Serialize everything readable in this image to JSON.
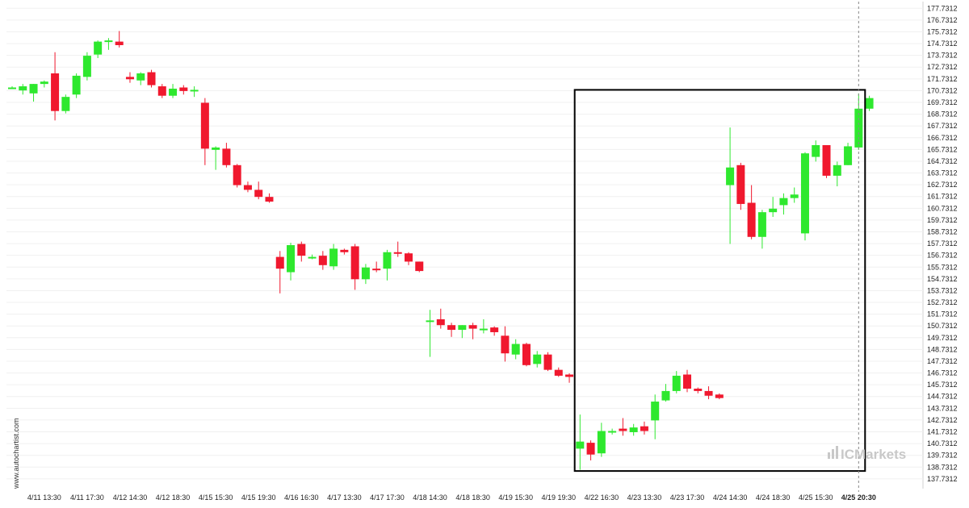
{
  "watermark": {
    "side": "www.autochartist.com",
    "logo": "ICMarkets"
  },
  "chart_data": {
    "type": "candlestick",
    "ylim": [
      136.9,
      178.3
    ],
    "y_ticks": [
      "177.7312",
      "176.7312",
      "175.7312",
      "174.7312",
      "173.7312",
      "172.7312",
      "171.7312",
      "170.7312",
      "169.7312",
      "168.7312",
      "167.7312",
      "166.7312",
      "165.7312",
      "164.7312",
      "163.7312",
      "162.7312",
      "161.7312",
      "160.7312",
      "159.7312",
      "158.7312",
      "157.7312",
      "156.7312",
      "155.7312",
      "154.7312",
      "153.7312",
      "152.7312",
      "151.7312",
      "150.7312",
      "149.7312",
      "148.7312",
      "147.7312",
      "146.7312",
      "145.7312",
      "144.7312",
      "143.7312",
      "142.7312",
      "141.7312",
      "140.7312",
      "139.7312",
      "138.7312",
      "137.7312"
    ],
    "x_tick_labels": [
      {
        "label": "4/11 13:30",
        "index": 3
      },
      {
        "label": "4/11 17:30",
        "index": 7
      },
      {
        "label": "4/12 14:30",
        "index": 11
      },
      {
        "label": "4/12 18:30",
        "index": 15
      },
      {
        "label": "4/15 15:30",
        "index": 19
      },
      {
        "label": "4/15 19:30",
        "index": 23
      },
      {
        "label": "4/16 16:30",
        "index": 27
      },
      {
        "label": "4/17 13:30",
        "index": 31
      },
      {
        "label": "4/17 17:30",
        "index": 35
      },
      {
        "label": "4/18 14:30",
        "index": 39
      },
      {
        "label": "4/18 18:30",
        "index": 43
      },
      {
        "label": "4/19 15:30",
        "index": 47
      },
      {
        "label": "4/19 19:30",
        "index": 51
      },
      {
        "label": "4/22 16:30",
        "index": 55
      },
      {
        "label": "4/23 13:30",
        "index": 59
      },
      {
        "label": "4/23 17:30",
        "index": 63
      },
      {
        "label": "4/24 14:30",
        "index": 67
      },
      {
        "label": "4/24 18:30",
        "index": 71
      },
      {
        "label": "4/25 15:30",
        "index": 75
      },
      {
        "label": "4/25 20:30",
        "index": 79,
        "bold": true
      }
    ],
    "current_index": 79,
    "pattern_box": {
      "start_index": 52.5,
      "end_index": 79.6,
      "high": 170.8,
      "low": 138.4
    },
    "colors": {
      "up": "#2ee82e",
      "down": "#f0182e",
      "box": "#000000",
      "grid": "#f0f0f0",
      "cursor": "#888888"
    },
    "candles": [
      {
        "o": 171.0,
        "h": 171.1,
        "l": 170.9,
        "c": 171.0
      },
      {
        "o": 170.75,
        "h": 171.3,
        "l": 170.4,
        "c": 171.1
      },
      {
        "o": 170.5,
        "h": 171.3,
        "l": 169.8,
        "c": 171.3
      },
      {
        "o": 171.3,
        "h": 171.6,
        "l": 171.0,
        "c": 171.5
      },
      {
        "o": 172.2,
        "h": 174.0,
        "l": 168.2,
        "c": 169.0
      },
      {
        "o": 169.0,
        "h": 170.4,
        "l": 168.8,
        "c": 170.2
      },
      {
        "o": 170.4,
        "h": 172.2,
        "l": 170.1,
        "c": 172.0
      },
      {
        "o": 171.9,
        "h": 174.0,
        "l": 171.6,
        "c": 173.7
      },
      {
        "o": 173.8,
        "h": 175.0,
        "l": 173.5,
        "c": 174.9
      },
      {
        "o": 174.9,
        "h": 175.2,
        "l": 174.2,
        "c": 175.0
      },
      {
        "o": 174.9,
        "h": 175.8,
        "l": 174.4,
        "c": 174.6
      },
      {
        "o": 171.9,
        "h": 172.3,
        "l": 171.4,
        "c": 171.7
      },
      {
        "o": 171.6,
        "h": 172.3,
        "l": 171.2,
        "c": 172.2
      },
      {
        "o": 172.3,
        "h": 172.5,
        "l": 171.0,
        "c": 171.2
      },
      {
        "o": 171.1,
        "h": 171.3,
        "l": 170.1,
        "c": 170.3
      },
      {
        "o": 170.3,
        "h": 171.3,
        "l": 170.1,
        "c": 170.9
      },
      {
        "o": 171.0,
        "h": 171.2,
        "l": 170.4,
        "c": 170.7
      },
      {
        "o": 170.8,
        "h": 171.1,
        "l": 170.2,
        "c": 170.8
      },
      {
        "o": 169.7,
        "h": 170.1,
        "l": 164.4,
        "c": 165.8
      },
      {
        "o": 165.7,
        "h": 166.0,
        "l": 164.0,
        "c": 165.9
      },
      {
        "o": 165.8,
        "h": 166.3,
        "l": 164.2,
        "c": 164.4
      },
      {
        "o": 164.4,
        "h": 164.5,
        "l": 162.5,
        "c": 162.7
      },
      {
        "o": 162.7,
        "h": 163.0,
        "l": 162.1,
        "c": 162.3
      },
      {
        "o": 162.3,
        "h": 163.0,
        "l": 161.5,
        "c": 161.7
      },
      {
        "o": 161.7,
        "h": 162.0,
        "l": 161.2,
        "c": 161.3
      },
      {
        "o": 156.6,
        "h": 157.1,
        "l": 153.5,
        "c": 155.6
      },
      {
        "o": 155.3,
        "h": 157.8,
        "l": 154.6,
        "c": 157.6
      },
      {
        "o": 157.7,
        "h": 157.9,
        "l": 156.2,
        "c": 156.7
      },
      {
        "o": 156.6,
        "h": 156.8,
        "l": 156.4,
        "c": 156.6
      },
      {
        "o": 156.7,
        "h": 157.1,
        "l": 155.5,
        "c": 155.9
      },
      {
        "o": 155.8,
        "h": 157.7,
        "l": 155.5,
        "c": 157.3
      },
      {
        "o": 157.2,
        "h": 157.3,
        "l": 156.8,
        "c": 157.0
      },
      {
        "o": 157.5,
        "h": 157.7,
        "l": 153.8,
        "c": 154.7
      },
      {
        "o": 154.7,
        "h": 156.0,
        "l": 154.3,
        "c": 155.7
      },
      {
        "o": 155.6,
        "h": 156.2,
        "l": 155.3,
        "c": 155.5
      },
      {
        "o": 155.6,
        "h": 157.2,
        "l": 154.6,
        "c": 157.0
      },
      {
        "o": 157.0,
        "h": 157.9,
        "l": 156.6,
        "c": 156.9
      },
      {
        "o": 156.9,
        "h": 157.0,
        "l": 155.9,
        "c": 156.2
      },
      {
        "o": 156.2,
        "h": 156.2,
        "l": 155.3,
        "c": 155.4
      },
      {
        "o": 151.2,
        "h": 152.1,
        "l": 148.1,
        "c": 151.2
      },
      {
        "o": 151.3,
        "h": 152.2,
        "l": 150.5,
        "c": 150.8
      },
      {
        "o": 150.8,
        "h": 151.0,
        "l": 149.8,
        "c": 150.4
      },
      {
        "o": 150.4,
        "h": 150.8,
        "l": 149.7,
        "c": 150.8
      },
      {
        "o": 150.8,
        "h": 151.0,
        "l": 149.6,
        "c": 150.5
      },
      {
        "o": 150.4,
        "h": 151.3,
        "l": 150.1,
        "c": 150.5
      },
      {
        "o": 150.6,
        "h": 150.7,
        "l": 149.9,
        "c": 150.2
      },
      {
        "o": 149.9,
        "h": 150.7,
        "l": 147.7,
        "c": 148.4
      },
      {
        "o": 148.3,
        "h": 149.6,
        "l": 147.9,
        "c": 149.2
      },
      {
        "o": 149.2,
        "h": 149.3,
        "l": 147.3,
        "c": 147.4
      },
      {
        "o": 147.5,
        "h": 148.6,
        "l": 147.2,
        "c": 148.3
      },
      {
        "o": 148.3,
        "h": 148.5,
        "l": 146.9,
        "c": 147.0
      },
      {
        "o": 147.0,
        "h": 147.2,
        "l": 146.4,
        "c": 146.5
      },
      {
        "o": 146.6,
        "h": 146.7,
        "l": 145.9,
        "c": 146.4
      },
      {
        "o": 140.3,
        "h": 143.2,
        "l": 138.5,
        "c": 140.9
      },
      {
        "o": 140.8,
        "h": 141.0,
        "l": 139.3,
        "c": 139.8
      },
      {
        "o": 139.9,
        "h": 142.5,
        "l": 139.6,
        "c": 141.8
      },
      {
        "o": 141.8,
        "h": 142.0,
        "l": 141.5,
        "c": 141.8
      },
      {
        "o": 142.0,
        "h": 142.9,
        "l": 141.4,
        "c": 141.8
      },
      {
        "o": 141.7,
        "h": 142.4,
        "l": 141.4,
        "c": 142.1
      },
      {
        "o": 142.2,
        "h": 142.6,
        "l": 141.5,
        "c": 141.8
      },
      {
        "o": 142.7,
        "h": 144.9,
        "l": 141.1,
        "c": 144.3
      },
      {
        "o": 144.4,
        "h": 145.8,
        "l": 144.3,
        "c": 145.2
      },
      {
        "o": 145.2,
        "h": 146.9,
        "l": 145.0,
        "c": 146.5
      },
      {
        "o": 146.6,
        "h": 147.0,
        "l": 145.1,
        "c": 145.4
      },
      {
        "o": 145.4,
        "h": 145.5,
        "l": 145.0,
        "c": 145.2
      },
      {
        "o": 145.2,
        "h": 145.6,
        "l": 144.5,
        "c": 144.8
      },
      {
        "o": 144.9,
        "h": 145.0,
        "l": 144.5,
        "c": 144.6
      },
      {
        "o": 162.7,
        "h": 167.6,
        "l": 157.7,
        "c": 164.2
      },
      {
        "o": 164.4,
        "h": 164.6,
        "l": 160.6,
        "c": 161.1
      },
      {
        "o": 161.2,
        "h": 162.7,
        "l": 158.1,
        "c": 158.3
      },
      {
        "o": 158.3,
        "h": 160.6,
        "l": 157.3,
        "c": 160.4
      },
      {
        "o": 160.4,
        "h": 161.7,
        "l": 160.0,
        "c": 160.7
      },
      {
        "o": 161.0,
        "h": 162.0,
        "l": 160.2,
        "c": 161.6
      },
      {
        "o": 161.6,
        "h": 162.5,
        "l": 161.2,
        "c": 161.9
      },
      {
        "o": 158.6,
        "h": 165.5,
        "l": 158.0,
        "c": 165.4
      },
      {
        "o": 165.1,
        "h": 166.5,
        "l": 164.7,
        "c": 166.1
      },
      {
        "o": 166.1,
        "h": 166.1,
        "l": 163.3,
        "c": 163.5
      },
      {
        "o": 163.5,
        "h": 164.7,
        "l": 162.6,
        "c": 164.4
      },
      {
        "o": 164.4,
        "h": 166.3,
        "l": 164.4,
        "c": 166.0
      },
      {
        "o": 165.9,
        "h": 170.5,
        "l": 165.7,
        "c": 169.2
      },
      {
        "o": 169.2,
        "h": 170.3,
        "l": 169.0,
        "c": 170.1
      }
    ]
  }
}
